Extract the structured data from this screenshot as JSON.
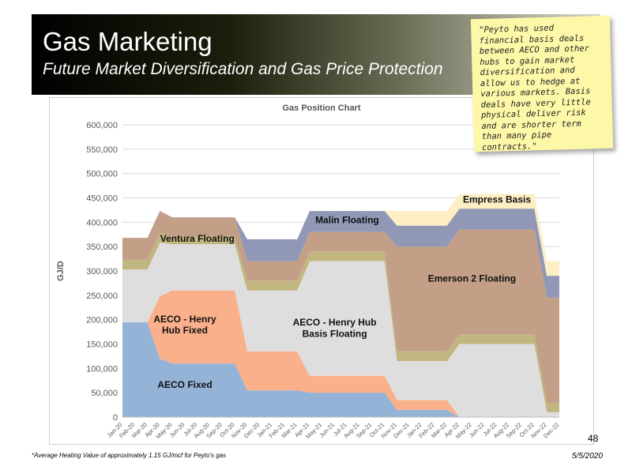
{
  "header": {
    "title": "Gas Marketing",
    "subtitle": "Future Market Diversification and Gas Price Protection"
  },
  "note": {
    "text": "\"Peyto has used financial basis deals between AECO and other hubs to gain market diversification and allow us to hedge at various markets. Basis deals have very little physical deliver risk and are shorter term than many pipe contracts.\""
  },
  "footer": {
    "page_number": "48",
    "footnote": "*Average Heating Value of approximately 1.15 GJ/mcf for Peyto's gas",
    "date": "5/5/2020"
  },
  "chart_data": {
    "type": "area",
    "stacked": true,
    "title": "Gas Position Chart",
    "ylabel": "GJ/D",
    "ylim": [
      0,
      600000
    ],
    "yticks": [
      "0",
      "50,000",
      "100,000",
      "150,000",
      "200,000",
      "250,000",
      "300,000",
      "350,000",
      "400,000",
      "450,000",
      "500,000",
      "550,000",
      "600,000"
    ],
    "categories": [
      "Jan-20",
      "Feb-20",
      "Mar-20",
      "Apr-20",
      "May-20",
      "Jun-20",
      "Jul-20",
      "Aug-20",
      "Sep-20",
      "Oct-20",
      "Nov-20",
      "Dec-20",
      "Jan-21",
      "Feb-21",
      "Mar-21",
      "Apr-21",
      "May-21",
      "Jun-21",
      "Jul-21",
      "Aug-21",
      "Sep-21",
      "Oct-21",
      "Nov-21",
      "Dec-21",
      "Jan-22",
      "Feb-22",
      "Mar-22",
      "Apr-22",
      "May-22",
      "Jun-22",
      "Jul-22",
      "Aug-22",
      "Sep-22",
      "Oct-22",
      "Nov-22",
      "Dec-22"
    ],
    "series": [
      {
        "name": "AECO Fixed",
        "color": "#95b3d7",
        "values": [
          195000,
          195000,
          195000,
          120000,
          110000,
          110000,
          110000,
          110000,
          110000,
          110000,
          55000,
          55000,
          55000,
          55000,
          55000,
          50000,
          50000,
          50000,
          50000,
          50000,
          50000,
          50000,
          15000,
          15000,
          15000,
          15000,
          15000,
          0,
          0,
          0,
          0,
          0,
          0,
          0,
          0,
          0
        ]
      },
      {
        "name": "AECO - Henry Hub Fixed",
        "color": "#fab08a",
        "values": [
          0,
          0,
          0,
          128000,
          150000,
          150000,
          150000,
          150000,
          150000,
          150000,
          80000,
          80000,
          80000,
          80000,
          80000,
          35000,
          35000,
          35000,
          35000,
          35000,
          35000,
          35000,
          20000,
          20000,
          20000,
          20000,
          20000,
          0,
          0,
          0,
          0,
          0,
          0,
          0,
          0,
          0
        ]
      },
      {
        "name": "AECO - Henry Hub Basis Floating",
        "color": "#dedede",
        "values": [
          108000,
          108000,
          108000,
          110000,
          95000,
          95000,
          95000,
          95000,
          95000,
          95000,
          125000,
          125000,
          125000,
          125000,
          125000,
          235000,
          235000,
          235000,
          235000,
          235000,
          235000,
          235000,
          80000,
          80000,
          80000,
          80000,
          80000,
          150000,
          150000,
          150000,
          150000,
          150000,
          150000,
          150000,
          10000,
          10000
        ]
      },
      {
        "name": "",
        "color": "#c2b680",
        "values": [
          20000,
          20000,
          20000,
          20000,
          15000,
          15000,
          15000,
          15000,
          15000,
          15000,
          20000,
          20000,
          20000,
          20000,
          20000,
          20000,
          20000,
          20000,
          20000,
          20000,
          20000,
          20000,
          20000,
          20000,
          20000,
          20000,
          20000,
          20000,
          20000,
          20000,
          20000,
          20000,
          20000,
          20000,
          20000,
          20000
        ]
      },
      {
        "name": "Ventura Floating",
        "color": "#d4e4a2",
        "values": [
          0,
          0,
          0,
          0,
          0,
          0,
          0,
          0,
          0,
          0,
          0,
          0,
          0,
          0,
          0,
          0,
          0,
          0,
          0,
          0,
          0,
          0,
          0,
          0,
          0,
          0,
          0,
          0,
          0,
          0,
          0,
          0,
          0,
          0,
          0,
          0
        ]
      },
      {
        "name": "Emerson 2 Floating",
        "color": "#c39f87",
        "values": [
          45000,
          45000,
          45000,
          45000,
          40000,
          40000,
          40000,
          40000,
          40000,
          40000,
          40000,
          40000,
          40000,
          40000,
          40000,
          40000,
          40000,
          40000,
          40000,
          40000,
          40000,
          40000,
          215000,
          215000,
          215000,
          215000,
          215000,
          215000,
          215000,
          215000,
          215000,
          215000,
          215000,
          215000,
          215000,
          215000
        ]
      },
      {
        "name": "Malin Floating",
        "color": "#9098b6",
        "values": [
          0,
          0,
          0,
          0,
          0,
          0,
          0,
          0,
          0,
          0,
          45000,
          45000,
          45000,
          45000,
          45000,
          43000,
          43000,
          43000,
          43000,
          43000,
          43000,
          43000,
          43000,
          43000,
          43000,
          43000,
          43000,
          43000,
          43000,
          43000,
          43000,
          43000,
          43000,
          43000,
          45000,
          45000
        ]
      },
      {
        "name": "Empress Basis",
        "color": "#fdeec4",
        "values": [
          0,
          0,
          0,
          0,
          0,
          0,
          0,
          0,
          0,
          0,
          0,
          0,
          0,
          0,
          0,
          0,
          0,
          0,
          0,
          0,
          0,
          0,
          30000,
          30000,
          30000,
          30000,
          30000,
          30000,
          30000,
          30000,
          30000,
          30000,
          30000,
          30000,
          30000,
          30000
        ]
      }
    ],
    "annotations": [
      {
        "text": "Ventura Floating",
        "x": "Jul-20",
        "y": 360000
      },
      {
        "text": "AECO - Henry",
        "x": "Jun-20",
        "y": 195000
      },
      {
        "text": "Hub Fixed",
        "x": "Jun-20",
        "y": 172000
      },
      {
        "text": "AECO Fixed",
        "x": "Jun-20",
        "y": 60000
      },
      {
        "text": "AECO - Henry Hub",
        "x": "Jun-21",
        "y": 188000
      },
      {
        "text": "Basis Floating",
        "x": "Jun-21",
        "y": 165000
      },
      {
        "text": "Malin Floating",
        "x": "Jul-21",
        "y": 398000
      },
      {
        "text": "Emerson 2 Floating",
        "x": "May-22",
        "y": 278000
      },
      {
        "text": "Empress Basis",
        "x": "Jul-22",
        "y": 440000
      }
    ],
    "grid": true,
    "legend": "none"
  }
}
